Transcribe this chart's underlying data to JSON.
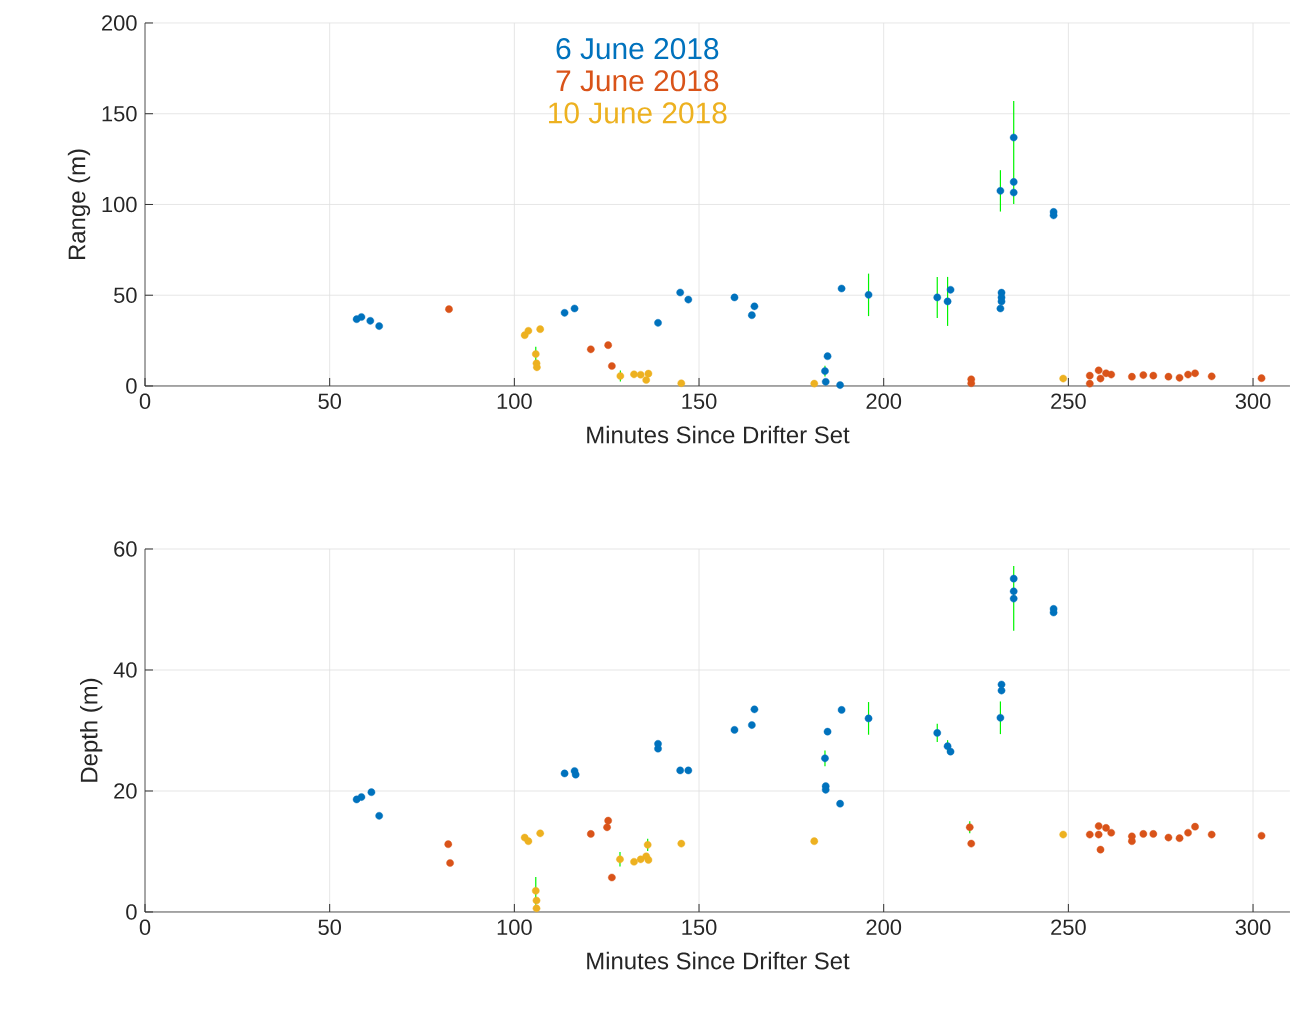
{
  "chart_data": [
    {
      "type": "scatter",
      "xlabel": "Minutes Since Drifter Set",
      "ylabel": "Range (m)",
      "xlim": [
        0,
        310
      ],
      "ylim": [
        0,
        200
      ],
      "xticks": [
        0,
        50,
        100,
        150,
        200,
        250,
        300
      ],
      "yticks": [
        0,
        50,
        100,
        150,
        200
      ],
      "grid": true,
      "legend": "top",
      "marker": "circle",
      "series": [
        {
          "name": "6 June 2018",
          "color": "#0072bd",
          "x": [
            57.3,
            58.6,
            61.0,
            63.4,
            113.6,
            116.3,
            138.9,
            144.9,
            147.1,
            159.6,
            165.0,
            164.3,
            188.6,
            195.9,
            214.5,
            217.3,
            218.1,
            231.9,
            231.9,
            231.9,
            231.6,
            231.6,
            235.2,
            235.2,
            235.2,
            246.0,
            246.0,
            184.8,
            184.1,
            184.3,
            188.2
          ],
          "values": [
            36.8,
            38.0,
            35.9,
            33.0,
            40.3,
            42.7,
            34.8,
            51.5,
            47.6,
            48.8,
            43.9,
            39.0,
            53.7,
            50.2,
            48.8,
            46.6,
            53.0,
            51.4,
            48.8,
            46.6,
            42.7,
            107.5,
            136.9,
            112.4,
            106.6,
            95.9,
            94.0,
            16.4,
            8.2,
            2.3,
            0.5
          ],
          "errors": [
            null,
            null,
            null,
            null,
            null,
            null,
            null,
            null,
            null,
            null,
            null,
            null,
            null,
            11.7,
            11.3,
            13.5,
            null,
            null,
            null,
            null,
            null,
            11.4,
            null,
            null,
            [
              100.2,
              157
            ],
            null,
            null,
            null,
            3,
            null,
            null
          ]
        },
        {
          "name": "7 June 2018",
          "color": "#d95319",
          "x": [
            82.3,
            120.7,
            125.4,
            126.4,
            223.7,
            223.7,
            255.8,
            255.8,
            258.2,
            258.7,
            260.2,
            261.6,
            267.2,
            270.3,
            273.0,
            277.1,
            280.1,
            282.4,
            284.3,
            288.8,
            302.3
          ],
          "values": [
            42.3,
            20.2,
            22.5,
            11.0,
            3.7,
            1.5,
            5.7,
            1.3,
            8.6,
            4.1,
            7.0,
            6.3,
            5.1,
            6.0,
            5.7,
            5.1,
            4.5,
            6.3,
            7.0,
            5.3,
            4.3
          ]
        },
        {
          "name": "10 June 2018",
          "color": "#edb120",
          "x": [
            102.8,
            103.8,
            107.0,
            105.8,
            106.0,
            106.1,
            128.7,
            132.4,
            134.2,
            136.3,
            135.7,
            145.2,
            181.2,
            248.6
          ],
          "values": [
            28.0,
            30.4,
            31.3,
            17.6,
            12.5,
            10.3,
            5.5,
            6.4,
            6.2,
            6.8,
            3.3,
            1.5,
            1.3,
            4.1
          ],
          "errors": [
            null,
            null,
            null,
            4,
            null,
            null,
            3,
            null,
            null,
            null,
            null,
            null,
            null,
            null
          ]
        }
      ]
    },
    {
      "type": "scatter",
      "xlabel": "Minutes Since Drifter Set",
      "ylabel": "Depth (m)",
      "xlim": [
        0,
        310
      ],
      "ylim": [
        0,
        60
      ],
      "xticks": [
        0,
        50,
        100,
        150,
        200,
        250,
        300
      ],
      "yticks": [
        0,
        20,
        40,
        60
      ],
      "grid": true,
      "marker": "circle",
      "series": [
        {
          "color": "#0072bd",
          "x": [
            57.3,
            58.6,
            61.3,
            63.4,
            113.6,
            116.3,
            116.6,
            138.9,
            138.9,
            144.9,
            147.1,
            159.6,
            165.0,
            164.3,
            188.6,
            195.9,
            214.5,
            217.3,
            218.1,
            231.9,
            231.9,
            231.6,
            235.2,
            235.2,
            235.2,
            246.0,
            246.0,
            184.8,
            184.1,
            184.3,
            184.3,
            188.2
          ],
          "values": [
            18.6,
            19.0,
            19.8,
            15.9,
            22.9,
            23.3,
            22.7,
            27.8,
            27.0,
            23.4,
            23.4,
            30.1,
            33.5,
            30.9,
            33.4,
            32.0,
            29.6,
            27.4,
            26.5,
            37.6,
            36.6,
            32.1,
            55.1,
            53.0,
            51.8,
            50.1,
            49.5,
            29.8,
            25.4,
            20.8,
            20.2,
            17.9
          ],
          "errors": [
            null,
            null,
            null,
            null,
            null,
            null,
            null,
            null,
            null,
            null,
            null,
            null,
            null,
            null,
            null,
            2.7,
            1.5,
            1,
            null,
            null,
            null,
            2.7,
            null,
            null,
            [
              46.5,
              57.2
            ],
            null,
            null,
            null,
            1.3,
            null,
            null,
            null
          ]
        },
        {
          "color": "#d95319",
          "x": [
            82.1,
            82.6,
            120.7,
            125.4,
            125.1,
            126.4,
            223.3,
            223.7,
            255.8,
            258.2,
            258.2,
            258.7,
            260.2,
            261.6,
            267.2,
            267.2,
            270.3,
            273.0,
            277.1,
            280.1,
            282.4,
            284.3,
            288.8,
            302.3
          ],
          "values": [
            11.2,
            8.1,
            12.9,
            15.1,
            14.0,
            5.7,
            14.0,
            11.3,
            12.8,
            14.2,
            12.8,
            10.3,
            13.9,
            13.1,
            12.5,
            11.7,
            12.9,
            12.9,
            12.3,
            12.2,
            13.1,
            14.1,
            12.8,
            12.6
          ],
          "errors": [
            null,
            null,
            null,
            null,
            null,
            null,
            1,
            null,
            null,
            null,
            null,
            null,
            null,
            null,
            null,
            null,
            null,
            null,
            null,
            null,
            null,
            null,
            null,
            null
          ]
        },
        {
          "color": "#edb120",
          "x": [
            102.8,
            103.8,
            107.0,
            105.8,
            106.0,
            106.0,
            128.6,
            132.4,
            134.2,
            136.1,
            135.7,
            136.3,
            145.2,
            181.2,
            248.6
          ],
          "values": [
            12.3,
            11.7,
            13.0,
            3.5,
            1.9,
            0.6,
            8.7,
            8.3,
            8.7,
            11.1,
            9.2,
            8.6,
            11.3,
            11.7,
            12.8
          ],
          "errors": [
            null,
            null,
            null,
            2.3,
            null,
            null,
            1.2,
            null,
            null,
            1,
            null,
            null,
            null,
            null,
            null
          ]
        }
      ]
    }
  ]
}
